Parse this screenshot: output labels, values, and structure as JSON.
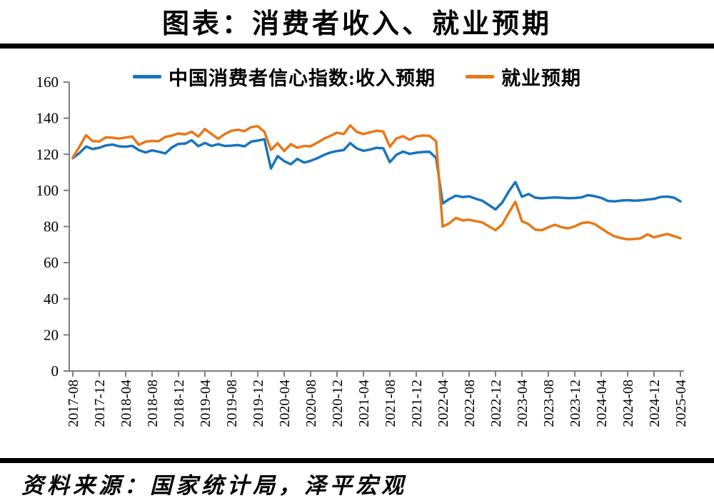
{
  "page": {
    "title": "图表：消费者收入、就业预期",
    "source": "资料来源：国家统计局，泽平宏观"
  },
  "chart_data": {
    "type": "line",
    "title": "图表：消费者收入、就业预期",
    "x_frequency": "monthly",
    "x_range": [
      "2017-08",
      "2025-04"
    ],
    "x_tick_labels": [
      "2017-08",
      "2017-12",
      "2018-04",
      "2018-08",
      "2018-12",
      "2019-04",
      "2019-08",
      "2019-12",
      "2020-04",
      "2020-08",
      "2020-12",
      "2021-04",
      "2021-08",
      "2021-12",
      "2022-04",
      "2022-08",
      "2022-12",
      "2023-04",
      "2023-08",
      "2023-12",
      "2024-04",
      "2024-08",
      "2024-12",
      "2025-04"
    ],
    "x_ticks_every_n_months": 4,
    "ylim": [
      0,
      160
    ],
    "y_ticks": [
      0,
      20,
      40,
      60,
      80,
      100,
      120,
      140,
      160
    ],
    "grid": false,
    "legend_position": "top",
    "axis_color": "#7f7f7f",
    "series": [
      {
        "name": "中国消费者信心指数:收入预期",
        "color": "#1874BE",
        "values": [
          117.9,
          120.7,
          124.3,
          122.9,
          123.6,
          124.9,
          125.4,
          124.4,
          124.2,
          124.7,
          122.3,
          121.0,
          122.2,
          121.4,
          120.5,
          123.8,
          125.8,
          125.9,
          127.8,
          124.5,
          126.3,
          124.6,
          125.6,
          124.6,
          124.8,
          125.1,
          124.4,
          127.0,
          127.6,
          128.3,
          112.1,
          119.0,
          116.2,
          114.5,
          117.5,
          115.4,
          116.4,
          117.8,
          119.6,
          121.0,
          121.8,
          122.3,
          126.2,
          123.2,
          121.9,
          122.6,
          123.6,
          123.3,
          115.6,
          119.8,
          121.5,
          120.2,
          120.9,
          121.3,
          121.4,
          118.0,
          92.8,
          95.2,
          97.1,
          96.3,
          96.7,
          95.4,
          94.3,
          91.9,
          89.5,
          93.2,
          99.4,
          104.6,
          96.5,
          98.0,
          96.0,
          95.6,
          95.9,
          96.1,
          95.9,
          95.7,
          95.8,
          96.1,
          97.4,
          96.8,
          95.9,
          94.2,
          93.9,
          94.4,
          94.6,
          94.3,
          94.5,
          94.9,
          95.3,
          96.4,
          96.6,
          96.0,
          93.9
        ]
      },
      {
        "name": "就业预期",
        "color": "#E87817",
        "values": [
          118.2,
          124.2,
          130.6,
          127.3,
          127.1,
          129.4,
          129.2,
          128.7,
          129.3,
          129.8,
          125.2,
          127.0,
          127.4,
          127.2,
          129.6,
          130.4,
          131.5,
          131.0,
          132.5,
          129.8,
          134.0,
          131.2,
          128.6,
          131.2,
          133.0,
          133.6,
          132.8,
          135.0,
          135.6,
          132.5,
          122.4,
          126.2,
          121.8,
          125.6,
          123.6,
          124.6,
          124.4,
          126.4,
          128.6,
          130.2,
          132.0,
          131.2,
          136.0,
          132.4,
          131.2,
          132.2,
          133.0,
          132.6,
          124.2,
          128.8,
          130.0,
          128.0,
          129.9,
          130.4,
          130.2,
          127.2,
          80.0,
          81.8,
          84.8,
          83.4,
          83.8,
          83.0,
          82.3,
          80.1,
          78.0,
          81.2,
          87.6,
          93.7,
          83.0,
          81.3,
          78.3,
          78.0,
          79.6,
          81.0,
          79.6,
          79.0,
          80.1,
          81.8,
          82.4,
          81.4,
          79.0,
          76.6,
          74.6,
          73.6,
          72.9,
          73.1,
          73.5,
          75.7,
          74.0,
          75.0,
          75.9,
          74.7,
          73.5
        ]
      }
    ]
  }
}
